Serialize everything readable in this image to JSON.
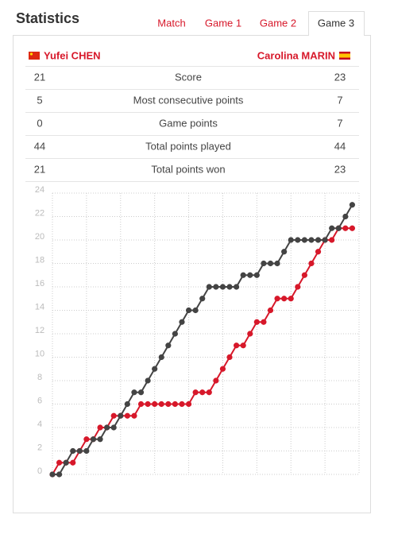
{
  "header": {
    "title": "Statistics"
  },
  "tabs": [
    "Match",
    "Game 1",
    "Game 2",
    "Game 3"
  ],
  "active_tab": 3,
  "players": {
    "left": "Yufei CHEN",
    "right": "Carolina MARIN"
  },
  "table": {
    "rows": [
      [
        21,
        "Score",
        23
      ],
      [
        5,
        "Most consecutive points",
        7
      ],
      [
        0,
        "Game points",
        7
      ],
      [
        44,
        "Total points played",
        44
      ],
      [
        21,
        "Total points won",
        23
      ]
    ]
  },
  "chart_data": {
    "type": "line",
    "x": [
      0,
      1,
      2,
      3,
      4,
      5,
      6,
      7,
      8,
      9,
      10,
      11,
      12,
      13,
      14,
      15,
      16,
      17,
      18,
      19,
      20,
      21,
      22,
      23,
      24,
      25,
      26,
      27,
      28,
      29,
      30,
      31,
      32,
      33,
      34,
      35,
      36,
      37,
      38,
      39,
      40,
      41,
      42,
      43,
      44
    ],
    "series": [
      {
        "name": "Yufei CHEN",
        "color": "#d7182a",
        "values": [
          0,
          1,
          1,
          1,
          2,
          3,
          3,
          4,
          4,
          5,
          5,
          5,
          5,
          6,
          6,
          6,
          6,
          6,
          6,
          6,
          6,
          7,
          7,
          7,
          8,
          9,
          10,
          11,
          11,
          12,
          13,
          13,
          14,
          15,
          15,
          15,
          16,
          17,
          18,
          19,
          20,
          20,
          21,
          21,
          21
        ]
      },
      {
        "name": "Carolina MARIN",
        "color": "#444444",
        "values": [
          0,
          0,
          1,
          2,
          2,
          2,
          3,
          3,
          4,
          4,
          5,
          6,
          7,
          7,
          8,
          9,
          10,
          11,
          12,
          13,
          14,
          14,
          15,
          16,
          16,
          16,
          16,
          16,
          17,
          17,
          17,
          18,
          18,
          18,
          19,
          20,
          20,
          20,
          20,
          20,
          20,
          21,
          21,
          22,
          23
        ]
      }
    ],
    "xlim": [
      0,
      45
    ],
    "xticks": [
      0,
      5,
      10,
      15,
      20,
      25,
      30,
      35,
      40,
      45
    ],
    "ylim": [
      0,
      24
    ],
    "yticks": [
      0,
      2,
      4,
      6,
      8,
      10,
      12,
      14,
      16,
      18,
      20,
      22,
      24
    ],
    "grid": true
  }
}
